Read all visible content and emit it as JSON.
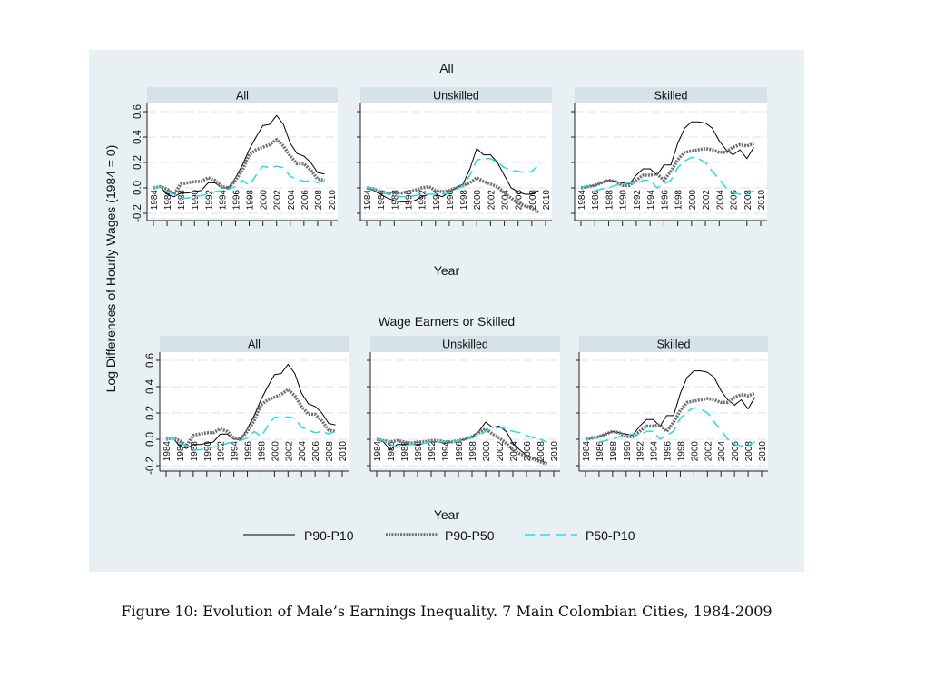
{
  "chart_data": {
    "type": "line",
    "ylabel": "Log Differences of Hourly Wages (1984 = 0)",
    "xlabel": "Year",
    "ylim": [
      -0.2,
      0.6
    ],
    "yticks": [
      "-0.2",
      "0.0",
      "0.2",
      "0.4",
      "0.6"
    ],
    "ytick_values": [
      -0.2,
      0,
      0.2,
      0.4,
      0.6
    ],
    "xticks": [
      "1984",
      "1986",
      "1988",
      "1990",
      "1992",
      "1994",
      "1996",
      "1998",
      "2000",
      "2002",
      "2004",
      "2006",
      "2008",
      "2010"
    ],
    "x": [
      1984,
      1985,
      1986,
      1987,
      1988,
      1989,
      1990,
      1991,
      1992,
      1993,
      1994,
      1995,
      1996,
      1997,
      1998,
      1999,
      2000,
      2001,
      2002,
      2003,
      2004,
      2005,
      2006,
      2007,
      2008,
      2009
    ],
    "grid": true,
    "legend": {
      "position": "bottom",
      "entries": [
        "P90-P10",
        "P90-P50",
        "P50-P10"
      ]
    },
    "series_colors": {
      "P90-P10": "#000000",
      "P90-P50": "#707070",
      "P50-P10": "#22e0e0"
    },
    "caption": "Figure 10: Evolution of Male’s Earnings Inequality. 7 Main Colombian Cities, 1984-2009",
    "groups": [
      {
        "title": "All",
        "panels": [
          {
            "title": "All",
            "series": [
              {
                "name": "P90-P10",
                "values": [
                  0,
                  0.01,
                  -0.05,
                  -0.07,
                  -0.04,
                  -0.04,
                  -0.03,
                  -0.02,
                  0.04,
                  0.04,
                  0.0,
                  0.0,
                  0.08,
                  0.18,
                  0.3,
                  0.4,
                  0.49,
                  0.5,
                  0.57,
                  0.5,
                  0.35,
                  0.27,
                  0.25,
                  0.2,
                  0.12,
                  0.11
                ]
              },
              {
                "name": "P90-P50",
                "values": [
                  0,
                  0.01,
                  -0.01,
                  -0.05,
                  0.03,
                  0.04,
                  0.05,
                  0.05,
                  0.08,
                  0.06,
                  0.01,
                  0.0,
                  0.06,
                  0.14,
                  0.26,
                  0.3,
                  0.32,
                  0.34,
                  0.38,
                  0.33,
                  0.25,
                  0.19,
                  0.19,
                  0.14,
                  0.07,
                  0.06
                ]
              },
              {
                "name": "P50-P10",
                "values": [
                  0,
                  0.01,
                  -0.03,
                  -0.05,
                  -0.08,
                  -0.08,
                  -0.07,
                  -0.06,
                  -0.05,
                  -0.03,
                  -0.02,
                  -0.01,
                  0.01,
                  0.06,
                  0.02,
                  0.1,
                  0.17,
                  0.16,
                  0.17,
                  0.16,
                  0.09,
                  0.07,
                  0.05,
                  0.06,
                  0.04,
                  0.06
                ]
              }
            ]
          },
          {
            "title": "Unskilled",
            "series": [
              {
                "name": "P90-P10",
                "values": [
                  0,
                  -0.02,
                  -0.05,
                  -0.08,
                  -0.1,
                  -0.11,
                  -0.11,
                  -0.1,
                  -0.07,
                  -0.05,
                  -0.05,
                  -0.07,
                  -0.03,
                  0.0,
                  0.03,
                  0.15,
                  0.31,
                  0.26,
                  0.26,
                  0.2,
                  0.1,
                  0.0,
                  -0.03,
                  -0.05,
                  -0.05,
                  -0.02
                ]
              },
              {
                "name": "P90-P50",
                "values": [
                  0,
                  -0.01,
                  -0.03,
                  -0.04,
                  -0.04,
                  -0.04,
                  -0.03,
                  -0.02,
                  0.0,
                  0.01,
                  -0.02,
                  -0.03,
                  -0.02,
                  0.0,
                  0.02,
                  0.04,
                  0.08,
                  0.05,
                  0.03,
                  0.01,
                  -0.04,
                  -0.08,
                  -0.12,
                  -0.14,
                  -0.16,
                  -0.19
                ]
              },
              {
                "name": "P50-P10",
                "values": [
                  0,
                  0.0,
                  -0.03,
                  -0.05,
                  -0.06,
                  -0.07,
                  -0.07,
                  -0.06,
                  -0.05,
                  -0.05,
                  -0.05,
                  -0.05,
                  -0.04,
                  -0.01,
                  0.01,
                  0.1,
                  0.22,
                  0.23,
                  0.23,
                  0.2,
                  0.16,
                  0.14,
                  0.13,
                  0.12,
                  0.13,
                  0.18
                ]
              }
            ]
          },
          {
            "title": "Skilled",
            "series": [
              {
                "name": "P90-P10",
                "values": [
                  0,
                  0.01,
                  0.02,
                  0.04,
                  0.06,
                  0.05,
                  0.04,
                  0.03,
                  0.1,
                  0.15,
                  0.15,
                  0.1,
                  0.18,
                  0.18,
                  0.35,
                  0.47,
                  0.52,
                  0.52,
                  0.51,
                  0.47,
                  0.37,
                  0.3,
                  0.26,
                  0.3,
                  0.23,
                  0.32
                ]
              },
              {
                "name": "P90-P50",
                "values": [
                  0,
                  0.01,
                  0.02,
                  0.04,
                  0.06,
                  0.05,
                  0.02,
                  0.02,
                  0.06,
                  0.1,
                  0.1,
                  0.11,
                  0.06,
                  0.13,
                  0.22,
                  0.28,
                  0.29,
                  0.3,
                  0.31,
                  0.3,
                  0.28,
                  0.28,
                  0.32,
                  0.34,
                  0.33,
                  0.35
                ]
              },
              {
                "name": "P50-P10",
                "values": [
                  0,
                  0.02,
                  -0.02,
                  -0.01,
                  0.0,
                  0.02,
                  0.03,
                  0.04,
                  0.03,
                  0.06,
                  0.06,
                  0.0,
                  0.03,
                  0.06,
                  0.16,
                  0.21,
                  0.24,
                  0.23,
                  0.2,
                  0.13,
                  0.07,
                  0.0,
                  -0.04,
                  -0.05,
                  -0.05,
                  -0.02
                ]
              }
            ]
          }
        ]
      },
      {
        "title": "Wage Earners or Skilled",
        "panels": [
          {
            "title": "All",
            "series": [
              {
                "name": "P90-P10",
                "values": [
                  0,
                  0.01,
                  -0.05,
                  -0.07,
                  -0.04,
                  -0.04,
                  -0.03,
                  -0.02,
                  0.04,
                  0.04,
                  0.0,
                  0.0,
                  0.08,
                  0.18,
                  0.3,
                  0.4,
                  0.49,
                  0.5,
                  0.57,
                  0.5,
                  0.35,
                  0.27,
                  0.25,
                  0.2,
                  0.12,
                  0.11
                ]
              },
              {
                "name": "P90-P50",
                "values": [
                  0,
                  0.01,
                  -0.01,
                  -0.05,
                  0.03,
                  0.04,
                  0.05,
                  0.05,
                  0.08,
                  0.06,
                  0.01,
                  0.0,
                  0.06,
                  0.14,
                  0.26,
                  0.3,
                  0.32,
                  0.34,
                  0.38,
                  0.33,
                  0.25,
                  0.19,
                  0.19,
                  0.14,
                  0.07,
                  0.06
                ]
              },
              {
                "name": "P50-P10",
                "values": [
                  0,
                  0.01,
                  -0.03,
                  -0.05,
                  -0.08,
                  -0.08,
                  -0.07,
                  -0.06,
                  -0.05,
                  -0.03,
                  -0.02,
                  -0.01,
                  0.01,
                  0.06,
                  0.02,
                  0.1,
                  0.17,
                  0.16,
                  0.17,
                  0.16,
                  0.09,
                  0.07,
                  0.05,
                  0.06,
                  0.04,
                  0.06
                ]
              }
            ]
          },
          {
            "title": "Unskilled",
            "series": [
              {
                "name": "P90-P10",
                "values": [
                  0,
                  -0.02,
                  -0.08,
                  -0.04,
                  -0.04,
                  -0.04,
                  -0.04,
                  -0.03,
                  -0.02,
                  -0.02,
                  -0.03,
                  -0.02,
                  -0.01,
                  0.0,
                  0.02,
                  0.06,
                  0.13,
                  0.09,
                  0.1,
                  0.06,
                  -0.03,
                  -0.08,
                  -0.12,
                  -0.14,
                  -0.16,
                  -0.18
                ]
              },
              {
                "name": "P90-P50",
                "values": [
                  0,
                  -0.01,
                  -0.02,
                  -0.01,
                  -0.02,
                  -0.03,
                  -0.02,
                  -0.02,
                  -0.01,
                  -0.01,
                  -0.02,
                  -0.02,
                  -0.01,
                  0.0,
                  0.02,
                  0.05,
                  0.08,
                  0.04,
                  0.01,
                  -0.03,
                  -0.08,
                  -0.11,
                  -0.13,
                  -0.15,
                  -0.17,
                  -0.19
                ]
              },
              {
                "name": "P50-P10",
                "values": [
                  0,
                  -0.01,
                  -0.04,
                  -0.06,
                  -0.05,
                  -0.04,
                  -0.03,
                  -0.03,
                  -0.02,
                  -0.02,
                  -0.02,
                  -0.02,
                  -0.01,
                  0.0,
                  0.01,
                  0.03,
                  0.06,
                  0.08,
                  0.09,
                  0.08,
                  0.06,
                  0.05,
                  0.03,
                  0.01,
                  0.0,
                  -0.02
                ]
              }
            ]
          },
          {
            "title": "Skilled",
            "series": [
              {
                "name": "P90-P10",
                "values": [
                  0,
                  0.01,
                  0.02,
                  0.04,
                  0.06,
                  0.05,
                  0.04,
                  0.03,
                  0.1,
                  0.15,
                  0.15,
                  0.1,
                  0.18,
                  0.18,
                  0.35,
                  0.47,
                  0.52,
                  0.52,
                  0.51,
                  0.47,
                  0.37,
                  0.3,
                  0.26,
                  0.3,
                  0.23,
                  0.32
                ]
              },
              {
                "name": "P90-P50",
                "values": [
                  0,
                  0.01,
                  0.02,
                  0.04,
                  0.06,
                  0.05,
                  0.02,
                  0.02,
                  0.06,
                  0.1,
                  0.1,
                  0.11,
                  0.06,
                  0.13,
                  0.22,
                  0.28,
                  0.29,
                  0.3,
                  0.31,
                  0.3,
                  0.28,
                  0.28,
                  0.32,
                  0.34,
                  0.33,
                  0.35
                ]
              },
              {
                "name": "P50-P10",
                "values": [
                  0,
                  0.02,
                  -0.02,
                  -0.01,
                  0.0,
                  0.02,
                  0.03,
                  0.04,
                  0.03,
                  0.06,
                  0.06,
                  0.0,
                  0.03,
                  0.06,
                  0.16,
                  0.21,
                  0.24,
                  0.23,
                  0.2,
                  0.13,
                  0.07,
                  0.0,
                  -0.04,
                  -0.05,
                  -0.05,
                  -0.02
                ]
              }
            ]
          }
        ]
      }
    ]
  }
}
